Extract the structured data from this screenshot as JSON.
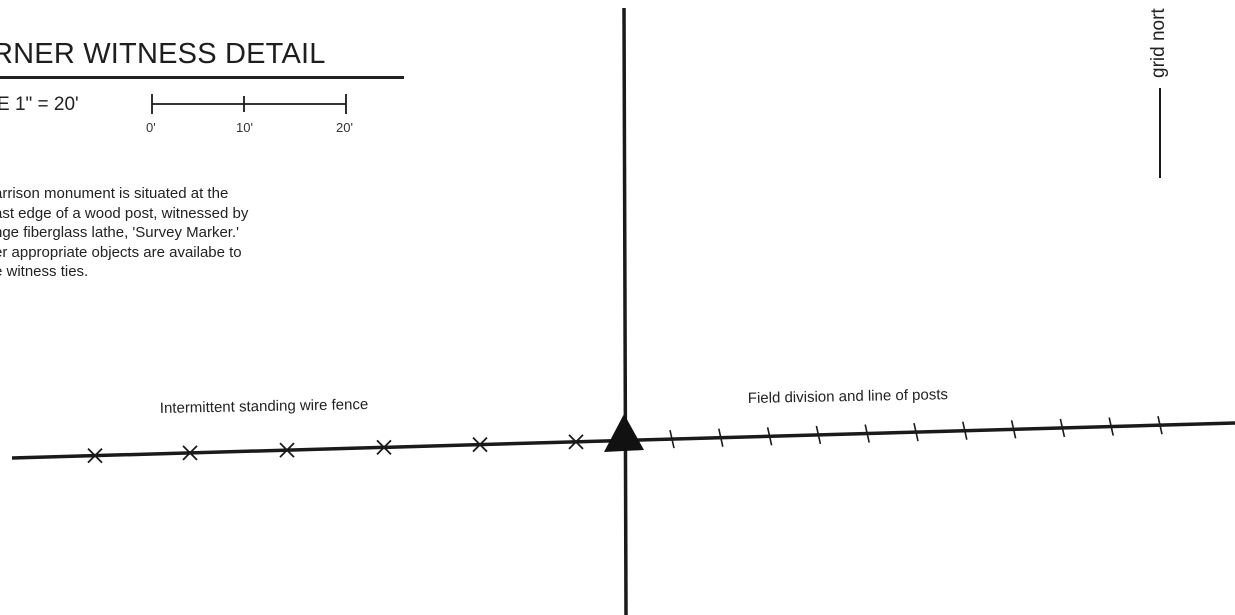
{
  "detail": {
    "title": "RNER WITNESS DETAIL",
    "scale_label": "E 1\" = 20'",
    "scale_ticks": [
      "0'",
      "10'",
      "20'"
    ]
  },
  "note_lines": [
    "arrison monument is situated at the",
    "ast edge of a wood post, witnessed by",
    "nge fiberglass lathe, 'Survey Marker.'",
    "er appropriate objects are availabe to",
    "e witness ties."
  ],
  "fence": {
    "left_label": "Intermittent standing wire fence",
    "right_label": "Field division and line of posts"
  },
  "north": {
    "label": "grid nort"
  },
  "symbols": {
    "monument_icon": "filled-triangle-icon",
    "wire_fence_marker": "x-mark-icon",
    "post_marker": "tick-mark-icon"
  },
  "colors": {
    "ink": "#1a1a1a",
    "paper": "#ffffff"
  }
}
